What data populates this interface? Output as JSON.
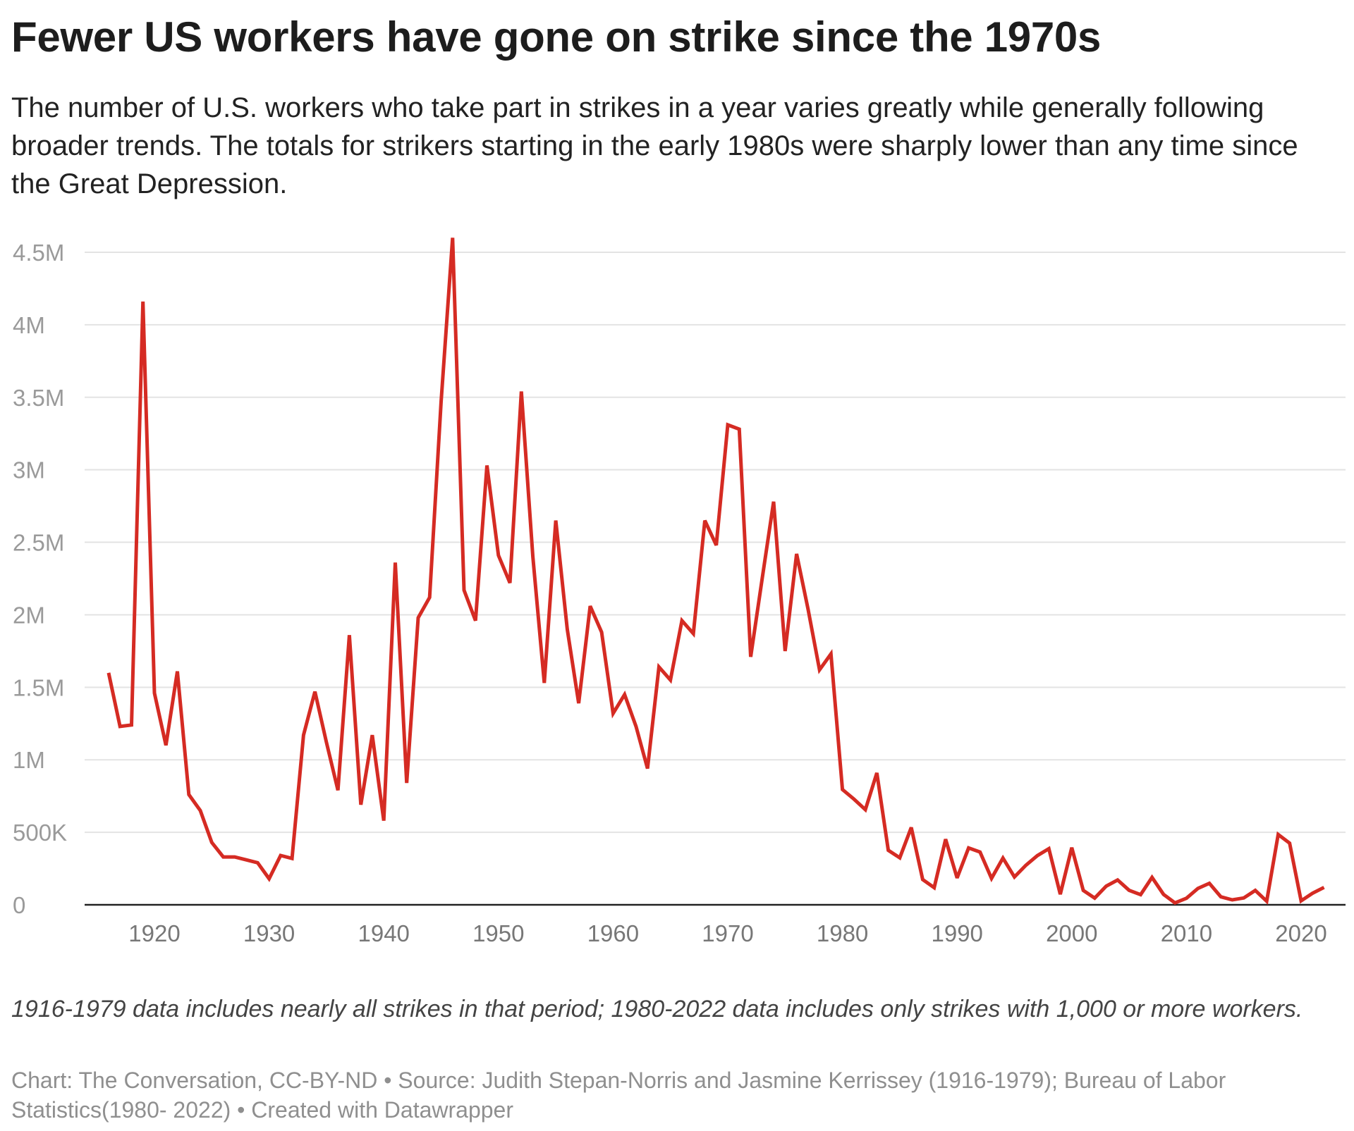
{
  "title": "Fewer US workers have gone on strike since the 1970s",
  "subtitle": "The number of U.S. workers who take part in strikes in a year varies greatly while generally following broader trends. The totals for strikers starting in the early 1980s were sharply lower than any time since the Great Depression.",
  "note": "1916-1979 data includes nearly all strikes in that period; 1980-2022 data includes only strikes with 1,000 or more workers.",
  "source": "Chart: The Conversation, CC-BY-ND • Source: Judith Stepan-Norris and Jasmine Kerrissey (1916-1979); Bureau of Labor Statistics(1980- 2022)  • Created with Datawrapper",
  "colors": {
    "line": "#d52b23",
    "grid": "#e3e3e3",
    "axis": "#222222"
  },
  "chart_data": {
    "type": "line",
    "title": "Fewer US workers have gone on strike since the 1970s",
    "xlabel": "",
    "ylabel": "",
    "ylim": [
      0,
      4500000
    ],
    "xlim": [
      1916,
      2022
    ],
    "grid": true,
    "y_ticks": [
      0,
      500000,
      1000000,
      1500000,
      2000000,
      2500000,
      3000000,
      3500000,
      4000000,
      4500000
    ],
    "y_tick_labels": [
      "0",
      "500K",
      "1M",
      "1.5M",
      "2M",
      "2.5M",
      "3M",
      "3.5M",
      "4M",
      "4.5M"
    ],
    "x_ticks": [
      1920,
      1930,
      1940,
      1950,
      1960,
      1970,
      1980,
      1990,
      2000,
      2010,
      2020
    ],
    "x_tick_labels": [
      "1920",
      "1930",
      "1940",
      "1950",
      "1960",
      "1970",
      "1980",
      "1990",
      "2000",
      "2010",
      "2020"
    ],
    "series": [
      {
        "x": [
          1916,
          1917,
          1918,
          1919,
          1920,
          1921,
          1922,
          1923,
          1924,
          1925,
          1926,
          1927,
          1928,
          1929,
          1930,
          1931,
          1932,
          1933,
          1934,
          1935,
          1936,
          1937,
          1938,
          1939,
          1940,
          1941,
          1942,
          1943,
          1944,
          1945,
          1946,
          1947,
          1948,
          1949,
          1950,
          1951,
          1952,
          1953,
          1954,
          1955,
          1956,
          1957,
          1958,
          1959,
          1960,
          1961,
          1962,
          1963,
          1964,
          1965,
          1966,
          1967,
          1968,
          1969,
          1970,
          1971,
          1972,
          1973,
          1974,
          1975,
          1976,
          1977,
          1978,
          1979,
          1980,
          1981,
          1982,
          1983,
          1984,
          1985,
          1986,
          1987,
          1988,
          1989,
          1990,
          1991,
          1992,
          1993,
          1994,
          1995,
          1996,
          1997,
          1998,
          1999,
          2000,
          2001,
          2002,
          2003,
          2004,
          2005,
          2006,
          2007,
          2008,
          2009,
          2010,
          2011,
          2012,
          2013,
          2014,
          2015,
          2016,
          2017,
          2018,
          2019,
          2020,
          2021,
          2022
        ],
        "y": [
          1600000,
          1230000,
          1240000,
          4160000,
          1460000,
          1100000,
          1610000,
          760000,
          650000,
          430000,
          330000,
          330000,
          310000,
          290000,
          180000,
          340000,
          320000,
          1170000,
          1470000,
          1120000,
          790000,
          1860000,
          690000,
          1170000,
          580000,
          2360000,
          840000,
          1980000,
          2120000,
          3470000,
          4600000,
          2170000,
          1960000,
          3030000,
          2410000,
          2220000,
          3540000,
          2400000,
          1530000,
          2650000,
          1900000,
          1390000,
          2060000,
          1880000,
          1320000,
          1450000,
          1230000,
          940000,
          1640000,
          1550000,
          1960000,
          1870000,
          2650000,
          2480000,
          3310000,
          3280000,
          1710000,
          2250000,
          2780000,
          1750000,
          2420000,
          2040000,
          1620000,
          1730000,
          795000,
          729000,
          656000,
          909000,
          376000,
          324000,
          533000,
          174000,
          118000,
          452000,
          185000,
          392000,
          364000,
          182000,
          322000,
          192000,
          273000,
          339000,
          387000,
          73000,
          394000,
          99000,
          46000,
          129000,
          171000,
          100000,
          70000,
          189000,
          72000,
          13000,
          45000,
          113000,
          148000,
          55000,
          34000,
          47000,
          99000,
          25000,
          485000,
          425000,
          27000,
          80000,
          120000
        ]
      }
    ]
  }
}
